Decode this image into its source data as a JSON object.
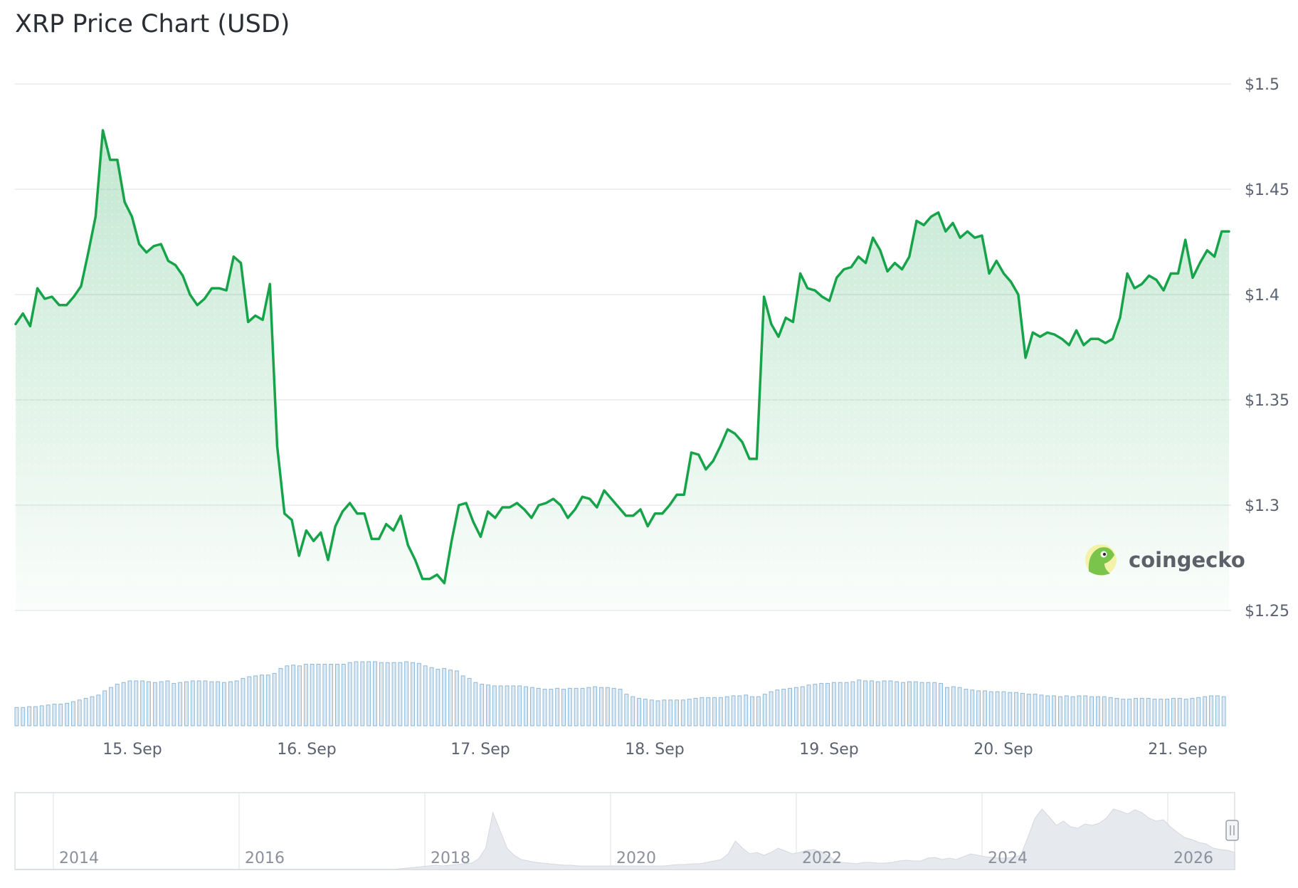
{
  "title": "XRP Price Chart (USD)",
  "watermark": "coingecko",
  "colors": {
    "line": "#16a34a",
    "volume": "#8fb8d6",
    "navigator_area": "#e6e9ee",
    "grid": "#e8eaee"
  },
  "chart_data": {
    "type": "line",
    "title": "XRP Price Chart (USD)",
    "x_tick_labels": [
      "15. Sep",
      "16. Sep",
      "17. Sep",
      "18. Sep",
      "19. Sep",
      "20. Sep",
      "21. Sep"
    ],
    "y_tick_labels": [
      "$1.5",
      "$1.45",
      "$1.4",
      "$1.35",
      "$1.3",
      "$1.25"
    ],
    "ylim": [
      1.25,
      1.5
    ],
    "xlim_days": [
      "14. Sep 09:00",
      "21. Sep 12:00"
    ],
    "grid": true,
    "series": [
      {
        "values": [
          1.386,
          1.391,
          1.385,
          1.403,
          1.398,
          1.399,
          1.395,
          1.395,
          1.399,
          1.404,
          1.42,
          1.437,
          1.478,
          1.464,
          1.464,
          1.444,
          1.437,
          1.424,
          1.42,
          1.423,
          1.424,
          1.416,
          1.414,
          1.409,
          1.4,
          1.395,
          1.398,
          1.403,
          1.403,
          1.402,
          1.418,
          1.415,
          1.387,
          1.39,
          1.388,
          1.405,
          1.328,
          1.296,
          1.293,
          1.276,
          1.288,
          1.283,
          1.287,
          1.274,
          1.29,
          1.297,
          1.301,
          1.296,
          1.296,
          1.284,
          1.284,
          1.291,
          1.288,
          1.295,
          1.281,
          1.274,
          1.265,
          1.265,
          1.267,
          1.263,
          1.283,
          1.3,
          1.301,
          1.292,
          1.285,
          1.297,
          1.294,
          1.299,
          1.299,
          1.301,
          1.298,
          1.294,
          1.3,
          1.301,
          1.303,
          1.3,
          1.294,
          1.298,
          1.304,
          1.303,
          1.299,
          1.307,
          1.303,
          1.299,
          1.295,
          1.295,
          1.298,
          1.29,
          1.296,
          1.296,
          1.3,
          1.305,
          1.305,
          1.325,
          1.324,
          1.317,
          1.321,
          1.328,
          1.336,
          1.334,
          1.33,
          1.322,
          1.322,
          1.399,
          1.386,
          1.38,
          1.389,
          1.387,
          1.41,
          1.403,
          1.402,
          1.399,
          1.397,
          1.408,
          1.412,
          1.413,
          1.418,
          1.415,
          1.427,
          1.421,
          1.411,
          1.415,
          1.412,
          1.418,
          1.435,
          1.433,
          1.437,
          1.439,
          1.43,
          1.434,
          1.427,
          1.43,
          1.427,
          1.428,
          1.41,
          1.416,
          1.41,
          1.406,
          1.4,
          1.37,
          1.382,
          1.38,
          1.382,
          1.381,
          1.379,
          1.376,
          1.383,
          1.376,
          1.379,
          1.379,
          1.377,
          1.379,
          1.389,
          1.41,
          1.403,
          1.405,
          1.409,
          1.407,
          1.402,
          1.41,
          1.41,
          1.426,
          1.408,
          1.415,
          1.421,
          1.418,
          1.43,
          1.43
        ]
      }
    ],
    "volume": [
      0.22,
      0.22,
      0.23,
      0.23,
      0.24,
      0.25,
      0.26,
      0.26,
      0.27,
      0.29,
      0.31,
      0.33,
      0.35,
      0.37,
      0.42,
      0.46,
      0.5,
      0.52,
      0.54,
      0.54,
      0.54,
      0.53,
      0.52,
      0.53,
      0.54,
      0.51,
      0.52,
      0.53,
      0.54,
      0.54,
      0.54,
      0.53,
      0.53,
      0.52,
      0.53,
      0.54,
      0.57,
      0.59,
      0.6,
      0.61,
      0.61,
      0.63,
      0.69,
      0.72,
      0.73,
      0.72,
      0.74,
      0.74,
      0.74,
      0.74,
      0.74,
      0.74,
      0.74,
      0.76,
      0.77,
      0.77,
      0.77,
      0.77,
      0.76,
      0.76,
      0.76,
      0.76,
      0.77,
      0.76,
      0.75,
      0.72,
      0.7,
      0.68,
      0.69,
      0.67,
      0.66,
      0.6,
      0.57,
      0.52,
      0.5,
      0.49,
      0.48,
      0.48,
      0.48,
      0.48,
      0.48,
      0.47,
      0.46,
      0.45,
      0.44,
      0.44,
      0.45,
      0.44,
      0.45,
      0.45,
      0.45,
      0.46,
      0.47,
      0.46,
      0.46,
      0.45,
      0.44,
      0.38,
      0.35,
      0.33,
      0.32,
      0.31,
      0.3,
      0.31,
      0.31,
      0.31,
      0.31,
      0.32,
      0.33,
      0.34,
      0.34,
      0.34,
      0.34,
      0.35,
      0.36,
      0.36,
      0.37,
      0.35,
      0.35,
      0.38,
      0.41,
      0.43,
      0.44,
      0.45,
      0.46,
      0.47,
      0.49,
      0.5,
      0.51,
      0.51,
      0.52,
      0.52,
      0.52,
      0.53,
      0.55,
      0.54,
      0.54,
      0.53,
      0.54,
      0.54,
      0.53,
      0.52,
      0.53,
      0.53,
      0.52,
      0.52,
      0.52,
      0.51,
      0.46,
      0.47,
      0.46,
      0.44,
      0.43,
      0.42,
      0.42,
      0.41,
      0.41,
      0.41,
      0.4,
      0.4,
      0.39,
      0.38,
      0.38,
      0.37,
      0.36,
      0.36,
      0.35,
      0.36,
      0.35,
      0.36,
      0.36,
      0.35,
      0.35,
      0.35,
      0.34,
      0.33,
      0.32,
      0.32,
      0.33,
      0.33,
      0.33,
      0.32,
      0.32,
      0.32,
      0.33,
      0.33,
      0.32,
      0.33,
      0.34,
      0.35,
      0.36,
      0.36,
      0.35
    ],
    "navigator": {
      "x_tick_labels": [
        "2014",
        "2016",
        "2018",
        "2020",
        "2022",
        "2024",
        "2026"
      ],
      "values": [
        0.0,
        0.0,
        0.0,
        0.0,
        0.0,
        0.0,
        0.0,
        0.0,
        0.0,
        0.0,
        0.0,
        0.0,
        0.0,
        0.0,
        0.0,
        0.0,
        0.0,
        0.0,
        0.0,
        0.0,
        0.0,
        0.0,
        0.0,
        0.0,
        0.0,
        0.0,
        0.0,
        0.0,
        0.0,
        0.0,
        0.0,
        0.0,
        0.0,
        0.0,
        0.0,
        0.0,
        0.0,
        0.0,
        0.0,
        0.0,
        0.0,
        0.0,
        0.0,
        0.0,
        0.0,
        0.0,
        0.0,
        0.0,
        0.0,
        0.0,
        0.0,
        0.0,
        0.0,
        0.0,
        0.01,
        0.02,
        0.03,
        0.04,
        0.05,
        0.06,
        0.05,
        0.06,
        0.07,
        0.08,
        0.09,
        0.15,
        0.3,
        0.8,
        0.55,
        0.3,
        0.2,
        0.14,
        0.12,
        0.1,
        0.09,
        0.08,
        0.07,
        0.06,
        0.06,
        0.05,
        0.05,
        0.05,
        0.05,
        0.05,
        0.05,
        0.05,
        0.05,
        0.05,
        0.05,
        0.05,
        0.05,
        0.05,
        0.06,
        0.07,
        0.07,
        0.08,
        0.08,
        0.1,
        0.12,
        0.14,
        0.22,
        0.4,
        0.3,
        0.22,
        0.24,
        0.2,
        0.24,
        0.3,
        0.26,
        0.22,
        0.24,
        0.27,
        0.28,
        0.25,
        0.2,
        0.12,
        0.1,
        0.09,
        0.08,
        0.1,
        0.1,
        0.09,
        0.09,
        0.1,
        0.12,
        0.13,
        0.12,
        0.12,
        0.16,
        0.17,
        0.14,
        0.16,
        0.14,
        0.18,
        0.22,
        0.2,
        0.18,
        0.17,
        0.16,
        0.16,
        0.17,
        0.2,
        0.45,
        0.72,
        0.85,
        0.74,
        0.62,
        0.68,
        0.6,
        0.58,
        0.64,
        0.62,
        0.65,
        0.72,
        0.85,
        0.82,
        0.78,
        0.84,
        0.8,
        0.72,
        0.68,
        0.7,
        0.6,
        0.52,
        0.45,
        0.42,
        0.38,
        0.36,
        0.3,
        0.28,
        0.27,
        0.24
      ]
    }
  }
}
